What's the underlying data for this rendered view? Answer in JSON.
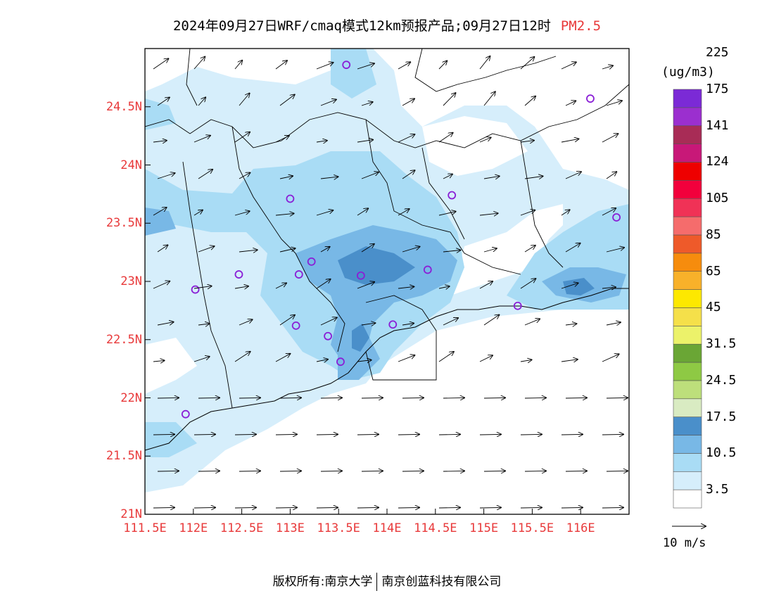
{
  "title": {
    "text": "2024年09月27日WRF/cmaq模式12km预报产品;09月27日12时",
    "variable": "PM2.5"
  },
  "map": {
    "lon_range": [
      111.5,
      116.5
    ],
    "lat_range": [
      21.0,
      25.0
    ],
    "lat_ticks": [
      "24.5N",
      "24N",
      "23.5N",
      "23N",
      "22.5N",
      "22N",
      "21.5N",
      "21N"
    ],
    "lon_ticks": [
      "111.5E",
      "112E",
      "112.5E",
      "113E",
      "113.5E",
      "114E",
      "114.5E",
      "115E",
      "115.5E",
      "116E"
    ],
    "station_color": "#8a1fd6",
    "stations": [
      {
        "lon": 113.58,
        "lat": 24.86
      },
      {
        "lon": 116.1,
        "lat": 24.57
      },
      {
        "lon": 113.0,
        "lat": 23.71
      },
      {
        "lon": 114.67,
        "lat": 23.74
      },
      {
        "lon": 116.37,
        "lat": 23.55
      },
      {
        "lon": 113.22,
        "lat": 23.17
      },
      {
        "lon": 112.47,
        "lat": 23.06
      },
      {
        "lon": 113.09,
        "lat": 23.06
      },
      {
        "lon": 113.73,
        "lat": 23.05
      },
      {
        "lon": 114.42,
        "lat": 23.1
      },
      {
        "lon": 112.02,
        "lat": 22.93
      },
      {
        "lon": 115.35,
        "lat": 22.79
      },
      {
        "lon": 113.06,
        "lat": 22.62
      },
      {
        "lon": 114.06,
        "lat": 22.63
      },
      {
        "lon": 113.39,
        "lat": 22.53
      },
      {
        "lon": 113.52,
        "lat": 22.31
      },
      {
        "lon": 111.92,
        "lat": 21.86
      }
    ]
  },
  "colorbar": {
    "unit": "(ug/m3)",
    "colors": [
      "#ffffff",
      "#d6eefb",
      "#a9dcf5",
      "#78b8e6",
      "#4a8fca",
      "#d9ebc2",
      "#bddf7b",
      "#8ec944",
      "#6aa635",
      "#ecf26a",
      "#f5e04a",
      "#fde800",
      "#f8b12a",
      "#f68c0d",
      "#ee5a2a",
      "#f56c6c",
      "#f03256",
      "#f2003c",
      "#ee0000",
      "#c81878",
      "#a82c56",
      "#9b2fcf",
      "#7b2ad6"
    ],
    "labels": [
      "3.5",
      "10.5",
      "17.5",
      "24.5",
      "31.5",
      "45",
      "65",
      "85",
      "105",
      "124",
      "141",
      "175",
      "225"
    ]
  },
  "wind_vector_label": "10  m/s",
  "footer": {
    "left": "版权所有:南京大学",
    "right": "南京创蓝科技有限公司"
  }
}
